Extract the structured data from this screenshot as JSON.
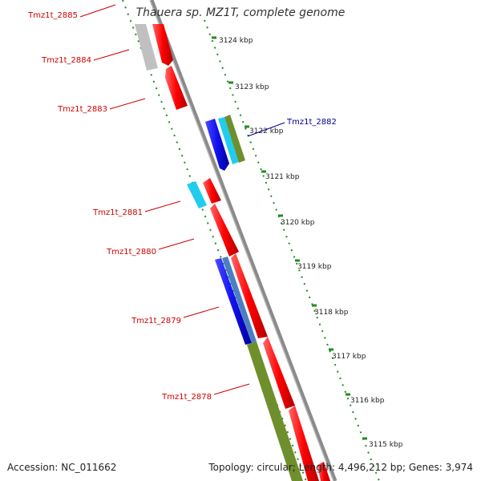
{
  "title": "Thauera sp. MZ1T, complete genome",
  "footer": {
    "accession": "Accession: NC_011662",
    "summary": "Topology: circular; Length: 4,496,212 bp; Genes: 3,974"
  },
  "scale_labels": [
    "3124 kbp",
    "3123 kbp",
    "3122 kbp",
    "3121 kbp",
    "3120 kbp",
    "3119 kbp",
    "3118 kbp",
    "3117 kbp",
    "3116 kbp",
    "3115 kbp"
  ],
  "gene_labels": [
    {
      "text": "Tmz1t_2885",
      "color": "#cc0000"
    },
    {
      "text": "Tmz1t_2884",
      "color": "#cc0000"
    },
    {
      "text": "Tmz1t_2883",
      "color": "#cc0000"
    },
    {
      "text": "Tmz1t_2882",
      "color": "#00008b"
    },
    {
      "text": "Tmz1t_2881",
      "color": "#cc0000"
    },
    {
      "text": "Tmz1t_2880",
      "color": "#cc0000"
    },
    {
      "text": "Tmz1t_2879",
      "color": "#cc0000"
    },
    {
      "text": "Tmz1t_2878",
      "color": "#cc0000"
    }
  ],
  "colors": {
    "backbone": "#7f7f7f",
    "red": "#ff0000",
    "blue": "#1010ee",
    "cyan": "#22ccee",
    "olive": "#6f8f2c",
    "steel": "#4a7fc0",
    "gray": "#c0c0c0",
    "dots": "#228b22"
  }
}
